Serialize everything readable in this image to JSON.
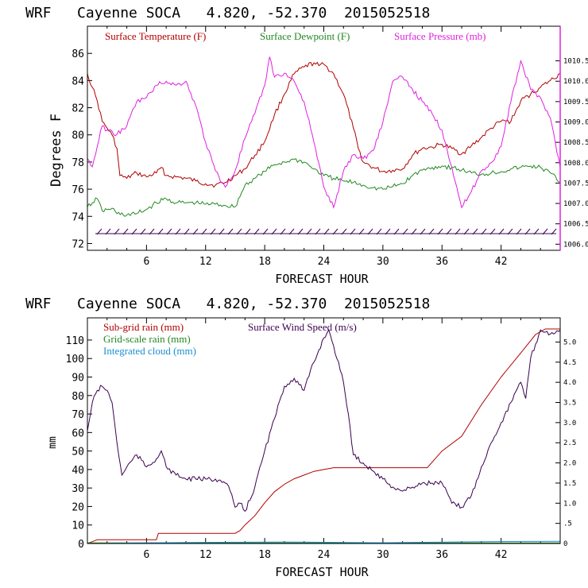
{
  "colors": {
    "temperature": "#b00000",
    "dewpoint": "#228822",
    "pressure": "#e020e0",
    "subgrid_rain": "#b00000",
    "gridscale_rain": "#228822",
    "cloud": "#1a8fcf",
    "wind": "#3a0050"
  },
  "chart_data": [
    {
      "type": "line",
      "title": "WRF   Cayenne SOCA   4.820, -52.370  2015052518",
      "xlabel": "FORECAST HOUR",
      "ylabel": "Degrees F",
      "xlim": [
        0,
        48
      ],
      "ylim": [
        71.5,
        88
      ],
      "y2lim": [
        1005.85,
        1011.35
      ],
      "xticks": [
        "6",
        "12",
        "18",
        "24",
        "30",
        "36",
        "42"
      ],
      "yticks": [
        "72",
        "74",
        "76",
        "78",
        "80",
        "82",
        "84",
        "86"
      ],
      "y2ticks": [
        "1006.0",
        "1006.5",
        "1007.0",
        "1007.5",
        "1008.0",
        "1008.5",
        "1009.0",
        "1009.5",
        "1010.0",
        "1010.5"
      ],
      "legend": [
        "Surface Temperature (F)",
        "Surface Dewpoint (F)",
        "Surface Pressure (mb)"
      ],
      "series": [
        {
          "name": "Surface Temperature (F)",
          "axis": "left",
          "x": [
            0,
            0.5,
            1,
            1.5,
            2,
            2.5,
            3,
            3.3,
            4,
            5,
            6,
            7,
            7.5,
            8,
            9,
            10,
            11,
            12,
            13,
            14,
            15,
            16,
            17,
            18,
            19,
            20,
            21,
            22,
            23,
            23.5,
            24,
            25,
            26,
            27,
            27.5,
            28,
            29,
            30,
            31,
            32,
            33,
            34,
            35,
            36,
            37,
            38,
            39,
            40,
            41,
            42,
            43,
            44,
            45,
            46,
            47,
            48
          ],
          "y": [
            84.5,
            83.5,
            82.5,
            81,
            80.5,
            80,
            79,
            77,
            76.8,
            77.2,
            76.9,
            77.2,
            77.6,
            77,
            76.9,
            76.8,
            76.6,
            76.4,
            76.3,
            76.5,
            77,
            77.5,
            78.5,
            79.5,
            81.5,
            83,
            84.5,
            85,
            85.3,
            85.1,
            85.2,
            84.5,
            83,
            80.5,
            79,
            78,
            77.6,
            77.3,
            77.4,
            77.5,
            78.5,
            79,
            79.1,
            79.3,
            79,
            78.6,
            79.2,
            79.8,
            80.5,
            81,
            81,
            82.5,
            83,
            83.5,
            84,
            84.5
          ]
        },
        {
          "name": "Surface Dewpoint (F)",
          "axis": "left",
          "x": [
            0,
            0.5,
            1,
            1.5,
            2,
            2.5,
            3,
            4,
            5,
            6,
            7,
            8,
            9,
            10,
            11,
            12,
            13,
            14,
            15,
            16,
            17,
            18,
            19,
            20,
            21,
            22,
            23,
            24,
            25,
            26,
            27,
            28,
            29,
            30,
            31,
            32,
            33,
            34,
            35,
            36,
            37,
            38,
            39,
            40,
            41,
            42,
            43,
            44,
            45,
            46,
            47,
            48
          ],
          "y": [
            74.7,
            75,
            75.3,
            74.4,
            74.5,
            74.6,
            74.2,
            74.1,
            74.2,
            74.5,
            75,
            75.3,
            75,
            75,
            75,
            74.9,
            74.9,
            74.8,
            74.7,
            76.3,
            76.8,
            77.3,
            77.8,
            78,
            78.2,
            78,
            77.5,
            77,
            76.8,
            76.6,
            76.5,
            76.3,
            76.1,
            76,
            76.2,
            76.4,
            77,
            77.4,
            77.6,
            77.7,
            77.6,
            77.4,
            77.2,
            77.1,
            77.2,
            77.3,
            77.5,
            77.6,
            77.7,
            77.6,
            77.2,
            76.5
          ]
        },
        {
          "name": "Surface Pressure (mb)",
          "axis": "right",
          "x": [
            0,
            0.5,
            1,
            1.5,
            2,
            3,
            4,
            5,
            6,
            7,
            8,
            9,
            10,
            11,
            12,
            13,
            14,
            15,
            16,
            17,
            18,
            18.5,
            19,
            20,
            21,
            22,
            23,
            24,
            25,
            26,
            27,
            28,
            29,
            30,
            31,
            32,
            33,
            34,
            35,
            36,
            37,
            38,
            39,
            40,
            41,
            42,
            43,
            44,
            45,
            46,
            47,
            48
          ],
          "y": [
            1008.1,
            1007.9,
            1008.4,
            1008.9,
            1008.8,
            1008.7,
            1008.9,
            1009.5,
            1009.6,
            1009.9,
            1010.0,
            1009.9,
            1010.0,
            1009.4,
            1008.5,
            1007.8,
            1007.4,
            1007.8,
            1008.6,
            1009.2,
            1009.9,
            1010.6,
            1010.1,
            1010.2,
            1010.0,
            1009.5,
            1008.5,
            1007.4,
            1006.9,
            1007.8,
            1008.2,
            1008.1,
            1008.3,
            1009.0,
            1010.0,
            1010.1,
            1009.8,
            1009.5,
            1009.2,
            1008.8,
            1007.9,
            1006.9,
            1007.3,
            1007.8,
            1008.0,
            1008.4,
            1009.5,
            1010.5,
            1009.8,
            1009.6,
            1009.1,
            1007.9
          ]
        }
      ]
    },
    {
      "type": "line",
      "title": "WRF   Cayenne SOCA   4.820, -52.370  2015052518",
      "xlabel": "FORECAST HOUR",
      "ylabel": "mm",
      "xlim": [
        0,
        48
      ],
      "ylim": [
        0,
        122
      ],
      "y2lim": [
        0,
        5.6
      ],
      "xticks": [
        "6",
        "12",
        "18",
        "24",
        "30",
        "36",
        "42"
      ],
      "yticks": [
        "0",
        "10",
        "20",
        "30",
        "40",
        "50",
        "60",
        "70",
        "80",
        "90",
        "100",
        "110"
      ],
      "y2ticks": [
        "0",
        ".5",
        "1.0",
        "1.5",
        "2.0",
        "2.5",
        "3.0",
        "3.5",
        "4.0",
        "4.5",
        "5.0"
      ],
      "legend": [
        "Sub-grid rain (mm)",
        "Surface Wind Speed (m/s)",
        "Grid-scale rain (mm)",
        "Integrated cloud (mm)"
      ],
      "series": [
        {
          "name": "Sub-grid rain (mm)",
          "axis": "left",
          "x": [
            0,
            0.5,
            1,
            7,
            7.2,
            15,
            15.5,
            16,
            17,
            18,
            19,
            20,
            21,
            22,
            23,
            24,
            25,
            26,
            34.5,
            36,
            38,
            40,
            42,
            44,
            45.5,
            46.5,
            48
          ],
          "y": [
            0,
            1,
            2,
            2,
            5.5,
            5.5,
            7,
            10,
            15,
            22,
            28,
            32,
            35,
            37,
            39,
            40,
            41,
            41,
            41,
            50,
            58,
            75,
            90,
            103,
            113,
            116,
            116
          ]
        },
        {
          "name": "Grid-scale rain (mm)",
          "axis": "left",
          "x": [
            0,
            48
          ],
          "y": [
            0.3,
            0.3
          ]
        },
        {
          "name": "Integrated cloud (mm)",
          "axis": "left",
          "x": [
            0,
            10,
            20,
            30,
            40,
            48
          ],
          "y": [
            0,
            0.5,
            0.8,
            0.4,
            1,
            1.2
          ]
        },
        {
          "name": "Surface Wind Speed (m/s)",
          "axis": "right",
          "x": [
            0,
            0.5,
            1,
            1.5,
            2,
            2.5,
            3,
            3.5,
            4,
            5,
            6,
            7,
            7.5,
            8,
            9,
            10,
            11,
            12,
            13,
            14,
            14.5,
            15,
            15.5,
            16,
            17,
            18,
            19,
            20,
            21,
            22,
            23,
            24,
            24.5,
            25,
            26,
            26.5,
            27,
            28,
            29,
            30,
            31,
            32,
            33,
            34,
            35,
            36,
            37,
            38,
            39,
            40,
            41,
            42,
            43,
            44,
            44.5,
            45,
            46,
            47,
            48
          ],
          "y": [
            2.8,
            3.5,
            3.8,
            3.9,
            3.8,
            3.5,
            2.5,
            1.7,
            1.9,
            2.2,
            1.9,
            2.1,
            2.3,
            1.9,
            1.7,
            1.6,
            1.6,
            1.6,
            1.6,
            1.5,
            1.3,
            0.9,
            1.0,
            0.8,
            1.4,
            2.3,
            3.1,
            3.9,
            4.1,
            3.8,
            4.5,
            5.1,
            5.3,
            4.9,
            4.0,
            3.2,
            2.2,
            2.0,
            1.8,
            1.6,
            1.4,
            1.3,
            1.4,
            1.5,
            1.5,
            1.5,
            1.0,
            0.9,
            1.2,
            1.9,
            2.5,
            3.0,
            3.5,
            4.0,
            3.6,
            4.6,
            5.3,
            5.2,
            5.3
          ]
        }
      ]
    }
  ]
}
